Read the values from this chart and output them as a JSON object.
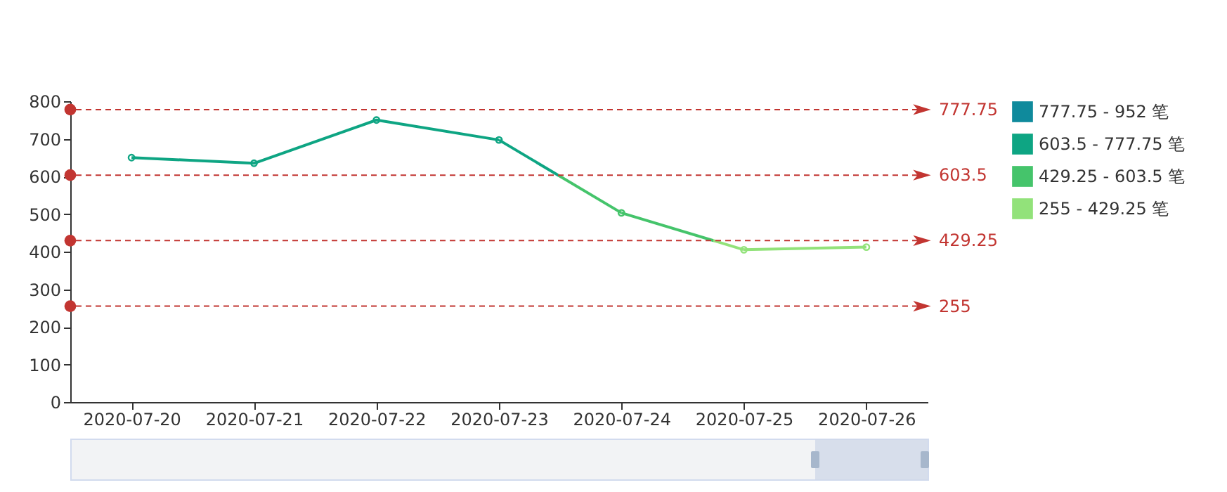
{
  "chart_data": {
    "type": "line",
    "categories": [
      "2020-07-20",
      "2020-07-21",
      "2020-07-22",
      "2020-07-23",
      "2020-07-24",
      "2020-07-25",
      "2020-07-26"
    ],
    "series": [
      {
        "name": "777.75 - 952 笔",
        "color": "#0f8a9c",
        "values": [
          null,
          null,
          null,
          null,
          null,
          null,
          null
        ]
      },
      {
        "name": "603.5 - 777.75 笔",
        "color": "#0ea583",
        "values": [
          650,
          635,
          750,
          697,
          null,
          null,
          null
        ]
      },
      {
        "name": "429.25 - 603.5 笔",
        "color": "#45c46b",
        "values": [
          null,
          null,
          null,
          null,
          503,
          null,
          null
        ]
      },
      {
        "name": "255 - 429.25 笔",
        "color": "#92e27a",
        "values": [
          null,
          null,
          null,
          null,
          null,
          405,
          412
        ]
      }
    ],
    "ylim": [
      0,
      800
    ],
    "yticks": [
      0,
      100,
      200,
      300,
      400,
      500,
      600,
      700,
      800
    ],
    "ref_lines": [
      {
        "axis": "y",
        "value": 777.75,
        "label": "777.75",
        "color": "#c23531",
        "line_style": "dashed"
      },
      {
        "axis": "y",
        "value": 603.5,
        "label": "603.5",
        "color": "#c23531",
        "line_style": "dashed"
      },
      {
        "axis": "y",
        "value": 429.25,
        "label": "429.25",
        "color": "#c23531",
        "line_style": "dashed"
      },
      {
        "axis": "y",
        "value": 255,
        "label": "255",
        "color": "#c23531",
        "line_style": "dashed"
      }
    ],
    "marker": "circle",
    "legend": "top right"
  }
}
